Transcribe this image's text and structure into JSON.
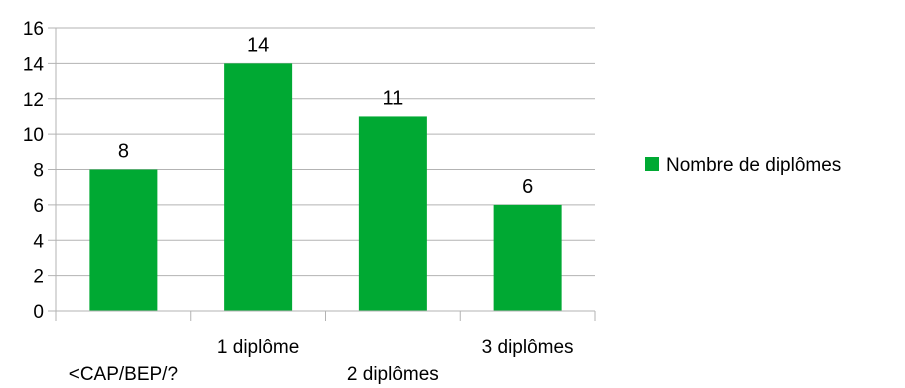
{
  "chart_data": {
    "type": "bar",
    "categories": [
      "<CAP/BEP/?",
      "1 diplôme",
      "2 diplômes",
      "3 diplômes"
    ],
    "series": [
      {
        "name": "Nombre de diplômes",
        "values": [
          8,
          14,
          11,
          6
        ],
        "color": "#00a933"
      }
    ],
    "data_labels": [
      "8",
      "14",
      "11",
      "6"
    ],
    "y_ticks": [
      "0",
      "2",
      "4",
      "6",
      "8",
      "10",
      "12",
      "14",
      "16"
    ],
    "ylim": [
      0,
      16
    ],
    "grid": true,
    "legend_position": "right",
    "gridline_color": "#b3b3b3",
    "axis_color": "#b3b3b3"
  }
}
